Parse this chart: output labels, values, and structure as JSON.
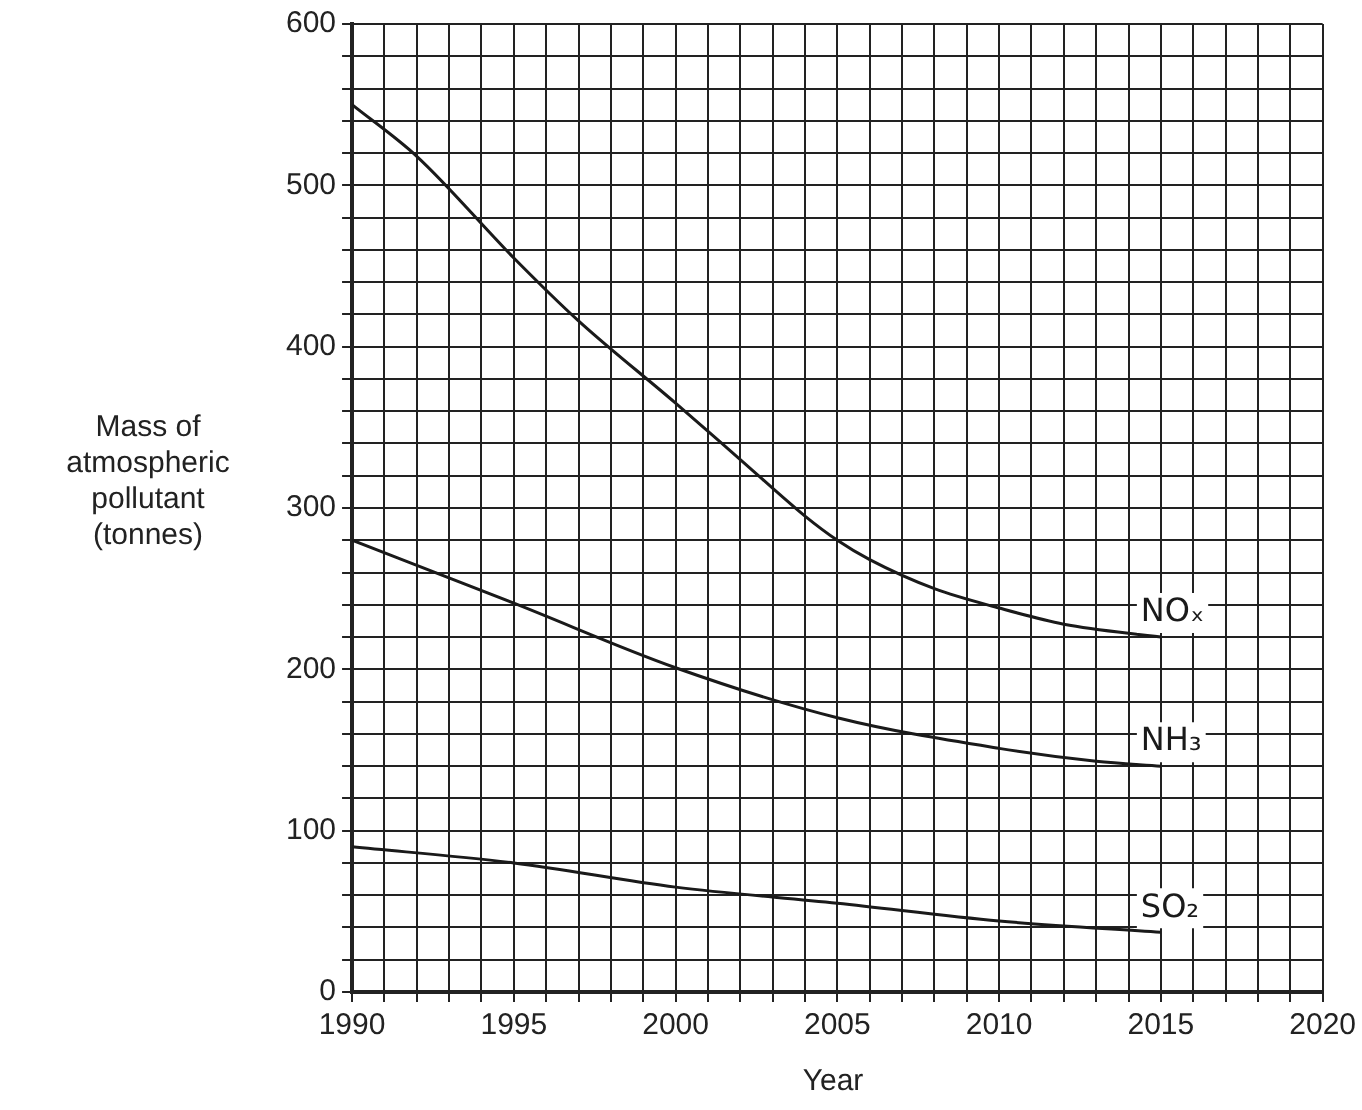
{
  "chart_data": {
    "type": "line",
    "xlabel": "Year",
    "ylabel": "Mass of atmospheric pollutant (tonnes)",
    "xlim": [
      1990,
      2020
    ],
    "xticks": [
      1990,
      {
        "value": 1991,
        "label": null
      },
      {
        "value": 1992,
        "label": null
      },
      {
        "value": 1993,
        "label": null
      },
      {
        "value": 1994,
        "label": null
      },
      1995,
      {
        "value": 1996,
        "label": null
      },
      {
        "value": 1997,
        "label": null
      },
      {
        "value": 1998,
        "label": null
      },
      {
        "value": 1999,
        "label": null
      },
      2000,
      {
        "value": 2001,
        "label": null
      },
      {
        "value": 2002,
        "label": null
      },
      {
        "value": 2003,
        "label": null
      },
      {
        "value": 2004,
        "label": null
      },
      2005,
      {
        "value": 2006,
        "label": null
      },
      {
        "value": 2007,
        "label": null
      },
      {
        "value": 2008,
        "label": null
      },
      {
        "value": 2009,
        "label": null
      },
      2010,
      {
        "value": 2011,
        "label": null
      },
      {
        "value": 2012,
        "label": null
      },
      {
        "value": 2013,
        "label": null
      },
      {
        "value": 2014,
        "label": null
      },
      2015,
      {
        "value": 2016,
        "label": null
      },
      {
        "value": 2017,
        "label": null
      },
      {
        "value": 2018,
        "label": null
      },
      {
        "value": 2019,
        "label": null
      },
      2020
    ],
    "ylim": [
      0,
      600
    ],
    "yticks": [
      0,
      {
        "value": 20,
        "label": null
      },
      {
        "value": 40,
        "label": null
      },
      {
        "value": 60,
        "label": null
      },
      {
        "value": 80,
        "label": null
      },
      100,
      {
        "value": 120,
        "label": null
      },
      {
        "value": 140,
        "label": null
      },
      {
        "value": 160,
        "label": null
      },
      {
        "value": 180,
        "label": null
      },
      200,
      {
        "value": 220,
        "label": null
      },
      {
        "value": 240,
        "label": null
      },
      {
        "value": 260,
        "label": null
      },
      {
        "value": 280,
        "label": null
      },
      300,
      {
        "value": 320,
        "label": null
      },
      {
        "value": 340,
        "label": null
      },
      {
        "value": 360,
        "label": null
      },
      {
        "value": 380,
        "label": null
      },
      400,
      {
        "value": 420,
        "label": null
      },
      {
        "value": 440,
        "label": null
      },
      {
        "value": 460,
        "label": null
      },
      {
        "value": 480,
        "label": null
      },
      500,
      {
        "value": 520,
        "label": null
      },
      {
        "value": 540,
        "label": null
      },
      {
        "value": 560,
        "label": null
      },
      {
        "value": 580,
        "label": null
      },
      600
    ],
    "grid": true,
    "legend": false,
    "marker": "none",
    "line_style": "solid",
    "x": [
      1990,
      1992,
      1995,
      1997,
      2000,
      2002,
      2004,
      2005,
      2006,
      2008,
      2010,
      2012,
      2015
    ],
    "series": [
      {
        "name": "NOₓ",
        "color": "#1a1a1a",
        "values": [
          550,
          518,
          455,
          416,
          365,
          330,
          295,
          280,
          268,
          250,
          238,
          228,
          220
        ]
      },
      {
        "name": "NH₃",
        "color": "#1a1a1a",
        "x": [
          1990,
          1995,
          2000,
          2005,
          2010,
          2013,
          2015
        ],
        "values": [
          280,
          241,
          201,
          170,
          151,
          143,
          140
        ]
      },
      {
        "name": "SO₂",
        "color": "#1a1a1a",
        "x": [
          1990,
          1995,
          2000,
          2005,
          2010,
          2015
        ],
        "values": [
          90,
          80,
          65,
          55,
          44,
          37
        ]
      }
    ]
  }
}
